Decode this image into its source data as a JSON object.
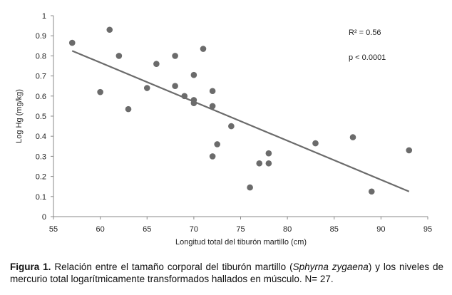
{
  "chart_data": {
    "type": "scatter",
    "xlabel": "Longitud total del tiburón martillo (cm)",
    "ylabel": "Log Hg (mg/kg)",
    "xlim": [
      55,
      95
    ],
    "ylim": [
      0,
      1
    ],
    "xticks": [
      "55",
      "60",
      "65",
      "70",
      "75",
      "80",
      "85",
      "90",
      "95"
    ],
    "yticks": [
      "0",
      "0.1",
      "0.2",
      "0.3",
      "0.4",
      "0.5",
      "0.6",
      "0.7",
      "0.8",
      "0.9",
      "1"
    ],
    "grid": false,
    "legend": "none",
    "marker_color": "#6b6b6b",
    "trendline_color": "#6b6b6b",
    "points": [
      {
        "x": 57,
        "y": 0.865
      },
      {
        "x": 60,
        "y": 0.62
      },
      {
        "x": 61,
        "y": 0.93
      },
      {
        "x": 62,
        "y": 0.8
      },
      {
        "x": 63,
        "y": 0.535
      },
      {
        "x": 65,
        "y": 0.64
      },
      {
        "x": 66,
        "y": 0.76
      },
      {
        "x": 68,
        "y": 0.8
      },
      {
        "x": 68,
        "y": 0.65
      },
      {
        "x": 69,
        "y": 0.6
      },
      {
        "x": 70,
        "y": 0.705
      },
      {
        "x": 70,
        "y": 0.58
      },
      {
        "x": 70,
        "y": 0.565
      },
      {
        "x": 71,
        "y": 0.835
      },
      {
        "x": 72,
        "y": 0.625
      },
      {
        "x": 72,
        "y": 0.55
      },
      {
        "x": 72,
        "y": 0.3
      },
      {
        "x": 72.5,
        "y": 0.36
      },
      {
        "x": 74,
        "y": 0.45
      },
      {
        "x": 76,
        "y": 0.145
      },
      {
        "x": 77,
        "y": 0.265
      },
      {
        "x": 78,
        "y": 0.315
      },
      {
        "x": 78,
        "y": 0.265
      },
      {
        "x": 83,
        "y": 0.365
      },
      {
        "x": 87,
        "y": 0.395
      },
      {
        "x": 89,
        "y": 0.125
      },
      {
        "x": 93,
        "y": 0.33
      }
    ],
    "trendline": {
      "x": [
        57,
        93
      ],
      "y": [
        0.825,
        0.125
      ]
    },
    "annotations": [
      "R² = 0.56",
      "p < 0.0001"
    ]
  },
  "caption": {
    "label": "Figura 1.",
    "text_before": " Relación entre el tamaño corporal del tiburón martillo (",
    "species": "Sphyrna zygaena",
    "text_after": ") y los niveles de mercurio total logarítmicamente transformados hallados en músculo. N= 27."
  }
}
